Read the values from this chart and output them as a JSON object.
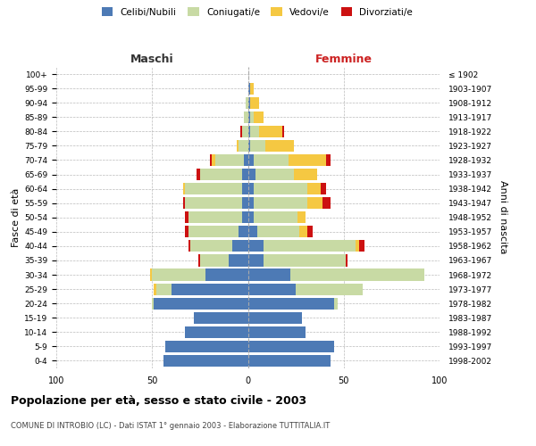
{
  "age_groups": [
    "0-4",
    "5-9",
    "10-14",
    "15-19",
    "20-24",
    "25-29",
    "30-34",
    "35-39",
    "40-44",
    "45-49",
    "50-54",
    "55-59",
    "60-64",
    "65-69",
    "70-74",
    "75-79",
    "80-84",
    "85-89",
    "90-94",
    "95-99",
    "100+"
  ],
  "birth_years": [
    "1998-2002",
    "1993-1997",
    "1988-1992",
    "1983-1987",
    "1978-1982",
    "1973-1977",
    "1968-1972",
    "1963-1967",
    "1958-1962",
    "1953-1957",
    "1948-1952",
    "1943-1947",
    "1938-1942",
    "1933-1937",
    "1928-1932",
    "1923-1927",
    "1918-1922",
    "1913-1917",
    "1908-1912",
    "1903-1907",
    "≤ 1902"
  ],
  "male_celibi": [
    44,
    43,
    33,
    28,
    49,
    40,
    22,
    10,
    8,
    5,
    3,
    3,
    3,
    3,
    2,
    0,
    0,
    0,
    0,
    0,
    0
  ],
  "male_coniugati": [
    0,
    0,
    0,
    0,
    1,
    8,
    28,
    15,
    22,
    26,
    28,
    30,
    30,
    22,
    15,
    5,
    3,
    2,
    1,
    0,
    0
  ],
  "male_vedovi": [
    0,
    0,
    0,
    0,
    0,
    1,
    1,
    0,
    0,
    0,
    0,
    0,
    1,
    0,
    2,
    1,
    0,
    0,
    0,
    0,
    0
  ],
  "male_divorziati": [
    0,
    0,
    0,
    0,
    0,
    0,
    0,
    1,
    1,
    2,
    2,
    1,
    0,
    2,
    1,
    0,
    1,
    0,
    0,
    0,
    0
  ],
  "fem_nubili": [
    43,
    45,
    30,
    28,
    45,
    25,
    22,
    8,
    8,
    5,
    3,
    3,
    3,
    4,
    3,
    1,
    1,
    1,
    1,
    1,
    0
  ],
  "fem_coniugate": [
    0,
    0,
    0,
    0,
    2,
    35,
    70,
    43,
    48,
    22,
    23,
    28,
    28,
    20,
    18,
    8,
    5,
    2,
    0,
    0,
    0
  ],
  "fem_vedove": [
    0,
    0,
    0,
    0,
    0,
    0,
    0,
    0,
    2,
    4,
    4,
    8,
    7,
    12,
    20,
    15,
    12,
    5,
    5,
    2,
    0
  ],
  "fem_divorziate": [
    0,
    0,
    0,
    0,
    0,
    0,
    0,
    1,
    3,
    3,
    0,
    4,
    3,
    0,
    2,
    0,
    1,
    0,
    0,
    0,
    0
  ],
  "color_celibi": "#4d7ab5",
  "color_coniugati": "#c8daa4",
  "color_vedovi": "#f5c842",
  "color_divorziati": "#cc1111",
  "title": "Popolazione per età, sesso e stato civile - 2003",
  "subtitle": "COMUNE DI INTROBIO (LC) - Dati ISTAT 1° gennaio 2003 - Elaborazione TUTTITALIA.IT",
  "legend_labels": [
    "Celibi/Nubili",
    "Coniugati/e",
    "Vedovi/e",
    "Divorziati/e"
  ],
  "label_maschi": "Maschi",
  "label_femmine": "Femmine",
  "ylabel_left": "Fasce di età",
  "ylabel_right": "Anni di nascita",
  "bg_color": "#ffffff",
  "grid_color": "#bbbbbb"
}
